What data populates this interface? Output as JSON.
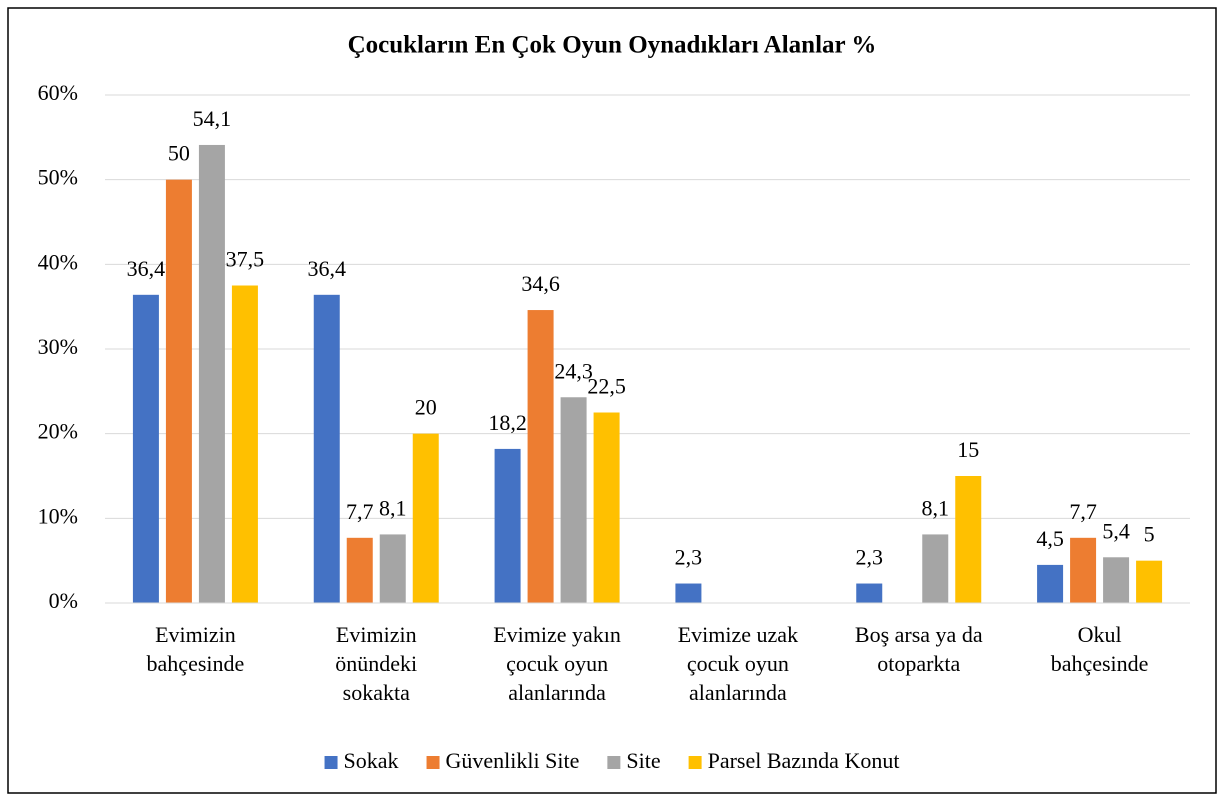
{
  "chart_data": {
    "type": "bar",
    "title": "Çocukların En Çok Oyun Oynadıkları Alanlar %",
    "categories": [
      "Evimizin\nbahçesinde",
      "Evimizin\nönündeki\nsokakta",
      "Evimize yakın\nçocuk oyun\nalanlarında",
      "Evimize uzak\nçocuk oyun\nalanlarında",
      "Boş arsa ya da\notoparkta",
      "Okul\nbahçesinde"
    ],
    "series": [
      {
        "name": "Sokak",
        "color": "#4472c4",
        "values": [
          36.4,
          36.4,
          18.2,
          2.3,
          2.3,
          4.5
        ],
        "value_labels": [
          "36,4",
          "36,4",
          "18,2",
          "2,3",
          "2,3",
          "4,5"
        ]
      },
      {
        "name": "Güvenlikli Site",
        "color": "#ed7d31",
        "values": [
          50,
          7.7,
          34.6,
          null,
          null,
          7.7
        ],
        "value_labels": [
          "50",
          "7,7",
          "34,6",
          null,
          null,
          "7,7"
        ]
      },
      {
        "name": "Site",
        "color": "#a5a5a5",
        "values": [
          54.1,
          8.1,
          24.3,
          null,
          8.1,
          5.4
        ],
        "value_labels": [
          "54,1",
          "8,1",
          "24,3",
          null,
          "8,1",
          "5,4"
        ]
      },
      {
        "name": "Parsel Bazında Konut",
        "color": "#ffc000",
        "values": [
          37.5,
          20,
          22.5,
          null,
          15,
          5
        ],
        "value_labels": [
          "37,5",
          "20",
          "22,5",
          null,
          "15",
          "5"
        ]
      }
    ],
    "ylim": [
      0,
      60
    ],
    "yticks": [
      {
        "value": 0,
        "label": "0%"
      },
      {
        "value": 10,
        "label": "10%"
      },
      {
        "value": 20,
        "label": "20%"
      },
      {
        "value": 30,
        "label": "30%"
      },
      {
        "value": 40,
        "label": "40%"
      },
      {
        "value": 50,
        "label": "50%"
      },
      {
        "value": 60,
        "label": "60%"
      }
    ],
    "grid": true,
    "legend": "bottom"
  }
}
